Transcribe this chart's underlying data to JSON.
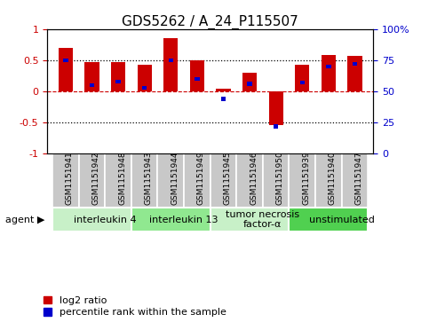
{
  "title": "GDS5262 / A_24_P115507",
  "samples": [
    "GSM1151941",
    "GSM1151942",
    "GSM1151948",
    "GSM1151943",
    "GSM1151944",
    "GSM1151949",
    "GSM1151945",
    "GSM1151946",
    "GSM1151950",
    "GSM1151939",
    "GSM1151940",
    "GSM1151947"
  ],
  "log2_ratio": [
    0.7,
    0.47,
    0.47,
    0.42,
    0.85,
    0.5,
    0.05,
    0.3,
    -0.54,
    0.43,
    0.58,
    0.57
  ],
  "percentile_rank_pct": [
    75,
    55,
    58,
    53,
    75,
    60,
    44,
    56,
    22,
    57,
    70,
    72
  ],
  "agents": [
    {
      "label": "interleukin 4",
      "start": 0,
      "end": 3,
      "color": "#c8f0c8"
    },
    {
      "label": "interleukin 13",
      "start": 3,
      "end": 6,
      "color": "#90e890"
    },
    {
      "label": "tumor necrosis\nfactor-α",
      "start": 6,
      "end": 9,
      "color": "#c8f0c8"
    },
    {
      "label": "unstimulated",
      "start": 9,
      "end": 12,
      "color": "#50d050"
    }
  ],
  "ylim": [
    -1,
    1
  ],
  "y2lim": [
    0,
    100
  ],
  "yticks": [
    -1,
    -0.5,
    0,
    0.5,
    1
  ],
  "ytick_labels": [
    "-1",
    "-0.5",
    "0",
    "0.5",
    "1"
  ],
  "y2ticks": [
    0,
    25,
    50,
    75,
    100
  ],
  "y2tick_labels": [
    "0",
    "25",
    "50",
    "75",
    "100%"
  ],
  "bar_color": "#cc0000",
  "pct_color": "#0000cc",
  "bar_width": 0.55,
  "hline0_color": "#cc0000",
  "hline0_style": "--",
  "dot_color": "#000000",
  "dot_style": ":",
  "sample_box_color": "#c8c8c8",
  "agent_label_fontsize": 8,
  "sample_fontsize": 6.5,
  "title_fontsize": 11,
  "legend_fontsize": 8,
  "tick_labelsize": 8
}
